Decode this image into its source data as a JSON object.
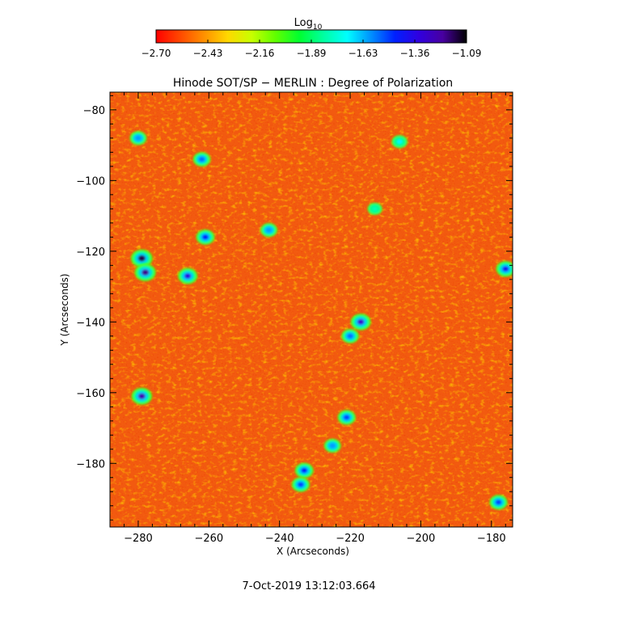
{
  "colorbar": {
    "label": "Log",
    "label_sub": "10",
    "ticks": [
      "−2.70",
      "−2.43",
      "−2.16",
      "−1.89",
      "−1.63",
      "−1.36",
      "−1.09"
    ],
    "range": [
      -2.7,
      -1.09
    ],
    "colormap": [
      "#ff0000",
      "#ff4800",
      "#ff9000",
      "#ffd800",
      "#c8ff00",
      "#60ff00",
      "#00ff30",
      "#00ffa0",
      "#00ffff",
      "#0090ff",
      "#0020ff",
      "#3000e0",
      "#4800a0",
      "#000000"
    ]
  },
  "chart_data": {
    "type": "heatmap",
    "title": "Hinode SOT/SP − MERLIN : Degree of Polarization",
    "xlabel": "X (Arcseconds)",
    "ylabel": "Y (Arcseconds)",
    "xlim": [
      -288,
      -174
    ],
    "ylim": [
      -198,
      -75
    ],
    "x_ticks": [
      -280,
      -260,
      -240,
      -220,
      -200,
      -180
    ],
    "y_ticks": [
      -80,
      -100,
      -120,
      -140,
      -160,
      -180
    ],
    "x_tick_labels": [
      "−280",
      "−260",
      "−240",
      "−220",
      "−200",
      "−180"
    ],
    "y_tick_labels": [
      "−80",
      "−100",
      "−120",
      "−140",
      "−160",
      "−180"
    ],
    "background_level": -2.62,
    "high_polarization_regions": [
      {
        "x": -279,
        "y": -122,
        "value": -1.15
      },
      {
        "x": -278,
        "y": -126,
        "value": -1.2
      },
      {
        "x": -266,
        "y": -127,
        "value": -1.35
      },
      {
        "x": -279,
        "y": -161,
        "value": -1.25
      },
      {
        "x": -261,
        "y": -116,
        "value": -1.45
      },
      {
        "x": -262,
        "y": -94,
        "value": -1.55
      },
      {
        "x": -217,
        "y": -140,
        "value": -1.3
      },
      {
        "x": -220,
        "y": -144,
        "value": -1.55
      },
      {
        "x": -233,
        "y": -182,
        "value": -1.45
      },
      {
        "x": -234,
        "y": -186,
        "value": -1.5
      },
      {
        "x": -221,
        "y": -167,
        "value": -1.5
      },
      {
        "x": -225,
        "y": -175,
        "value": -1.6
      },
      {
        "x": -243,
        "y": -114,
        "value": -1.6
      },
      {
        "x": -280,
        "y": -88,
        "value": -1.6
      },
      {
        "x": -176,
        "y": -125,
        "value": -1.4
      },
      {
        "x": -178,
        "y": -191,
        "value": -1.5
      },
      {
        "x": -206,
        "y": -89,
        "value": -1.7
      },
      {
        "x": -213,
        "y": -108,
        "value": -1.8
      }
    ]
  },
  "timestamp": "7-Oct-2019 13:12:03.664"
}
